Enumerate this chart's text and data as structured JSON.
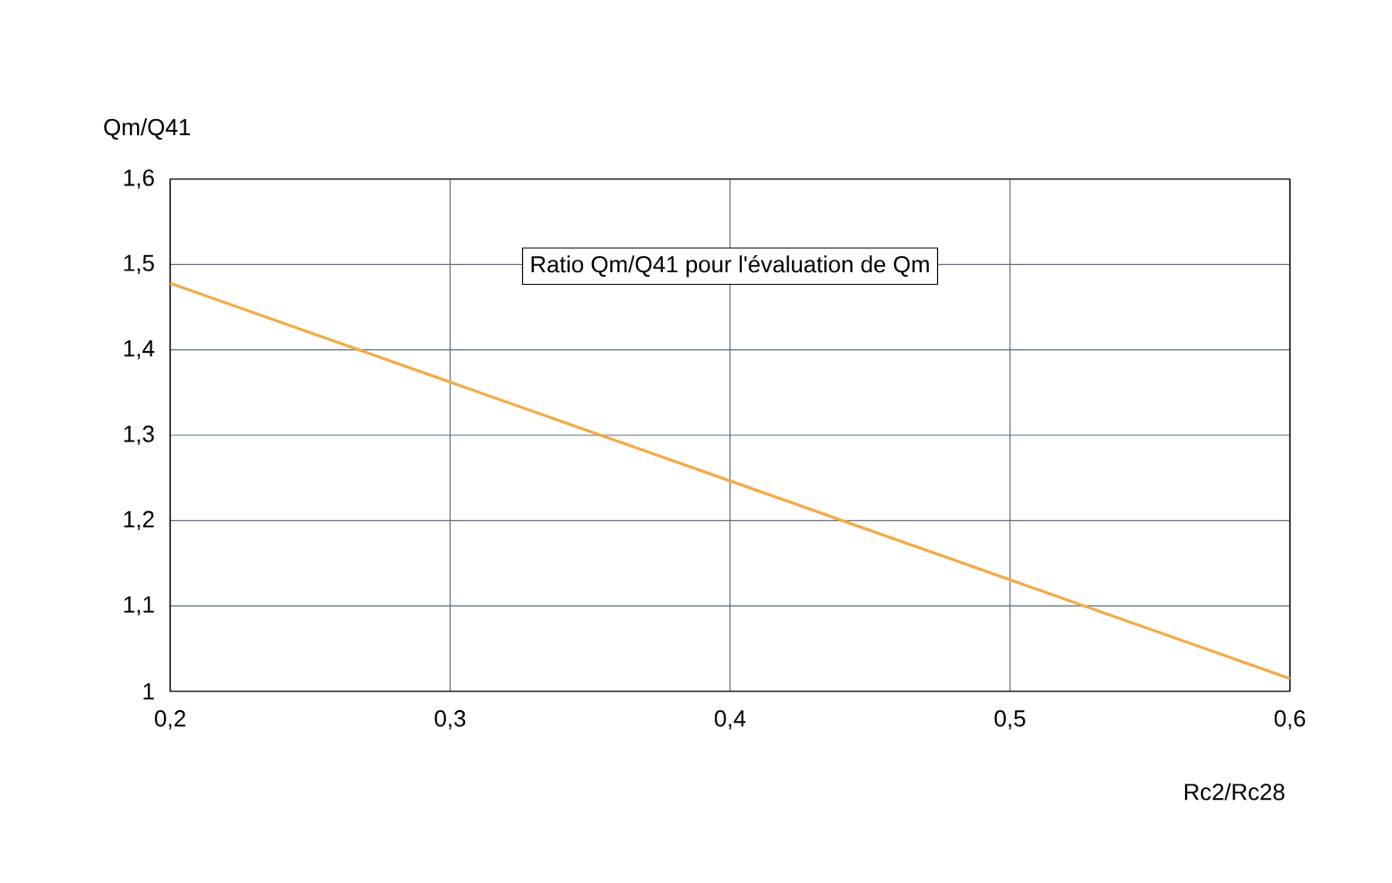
{
  "chart_data": {
    "type": "line",
    "title": "Ratio Qm/Q41 pour l'évaluation de Qm",
    "xlabel": "Rc2/Rc28",
    "ylabel": "Qm/Q41",
    "x": [
      0.2,
      0.6
    ],
    "series": [
      {
        "color": "#f5a945",
        "values": [
          1.478,
          1.015
        ]
      }
    ],
    "xlim": [
      0.2,
      0.6
    ],
    "ylim": [
      1,
      1.6
    ],
    "xticks": [
      {
        "value": 0.2,
        "label": "0,2"
      },
      {
        "value": 0.3,
        "label": "0,3"
      },
      {
        "value": 0.4,
        "label": "0,4"
      },
      {
        "value": 0.5,
        "label": "0,5"
      },
      {
        "value": 0.6,
        "label": "0,6"
      }
    ],
    "yticks": [
      1,
      {
        "value": 1.1,
        "label": "1,1"
      },
      {
        "value": 1.2,
        "label": "1,2"
      },
      {
        "value": 1.3,
        "label": "1,3"
      },
      {
        "value": 1.4,
        "label": "1,4"
      },
      {
        "value": 1.5,
        "label": "1,5"
      },
      {
        "value": 1.6,
        "label": "1,6"
      }
    ],
    "grid": true,
    "marker": "none",
    "line_style": "solid"
  }
}
